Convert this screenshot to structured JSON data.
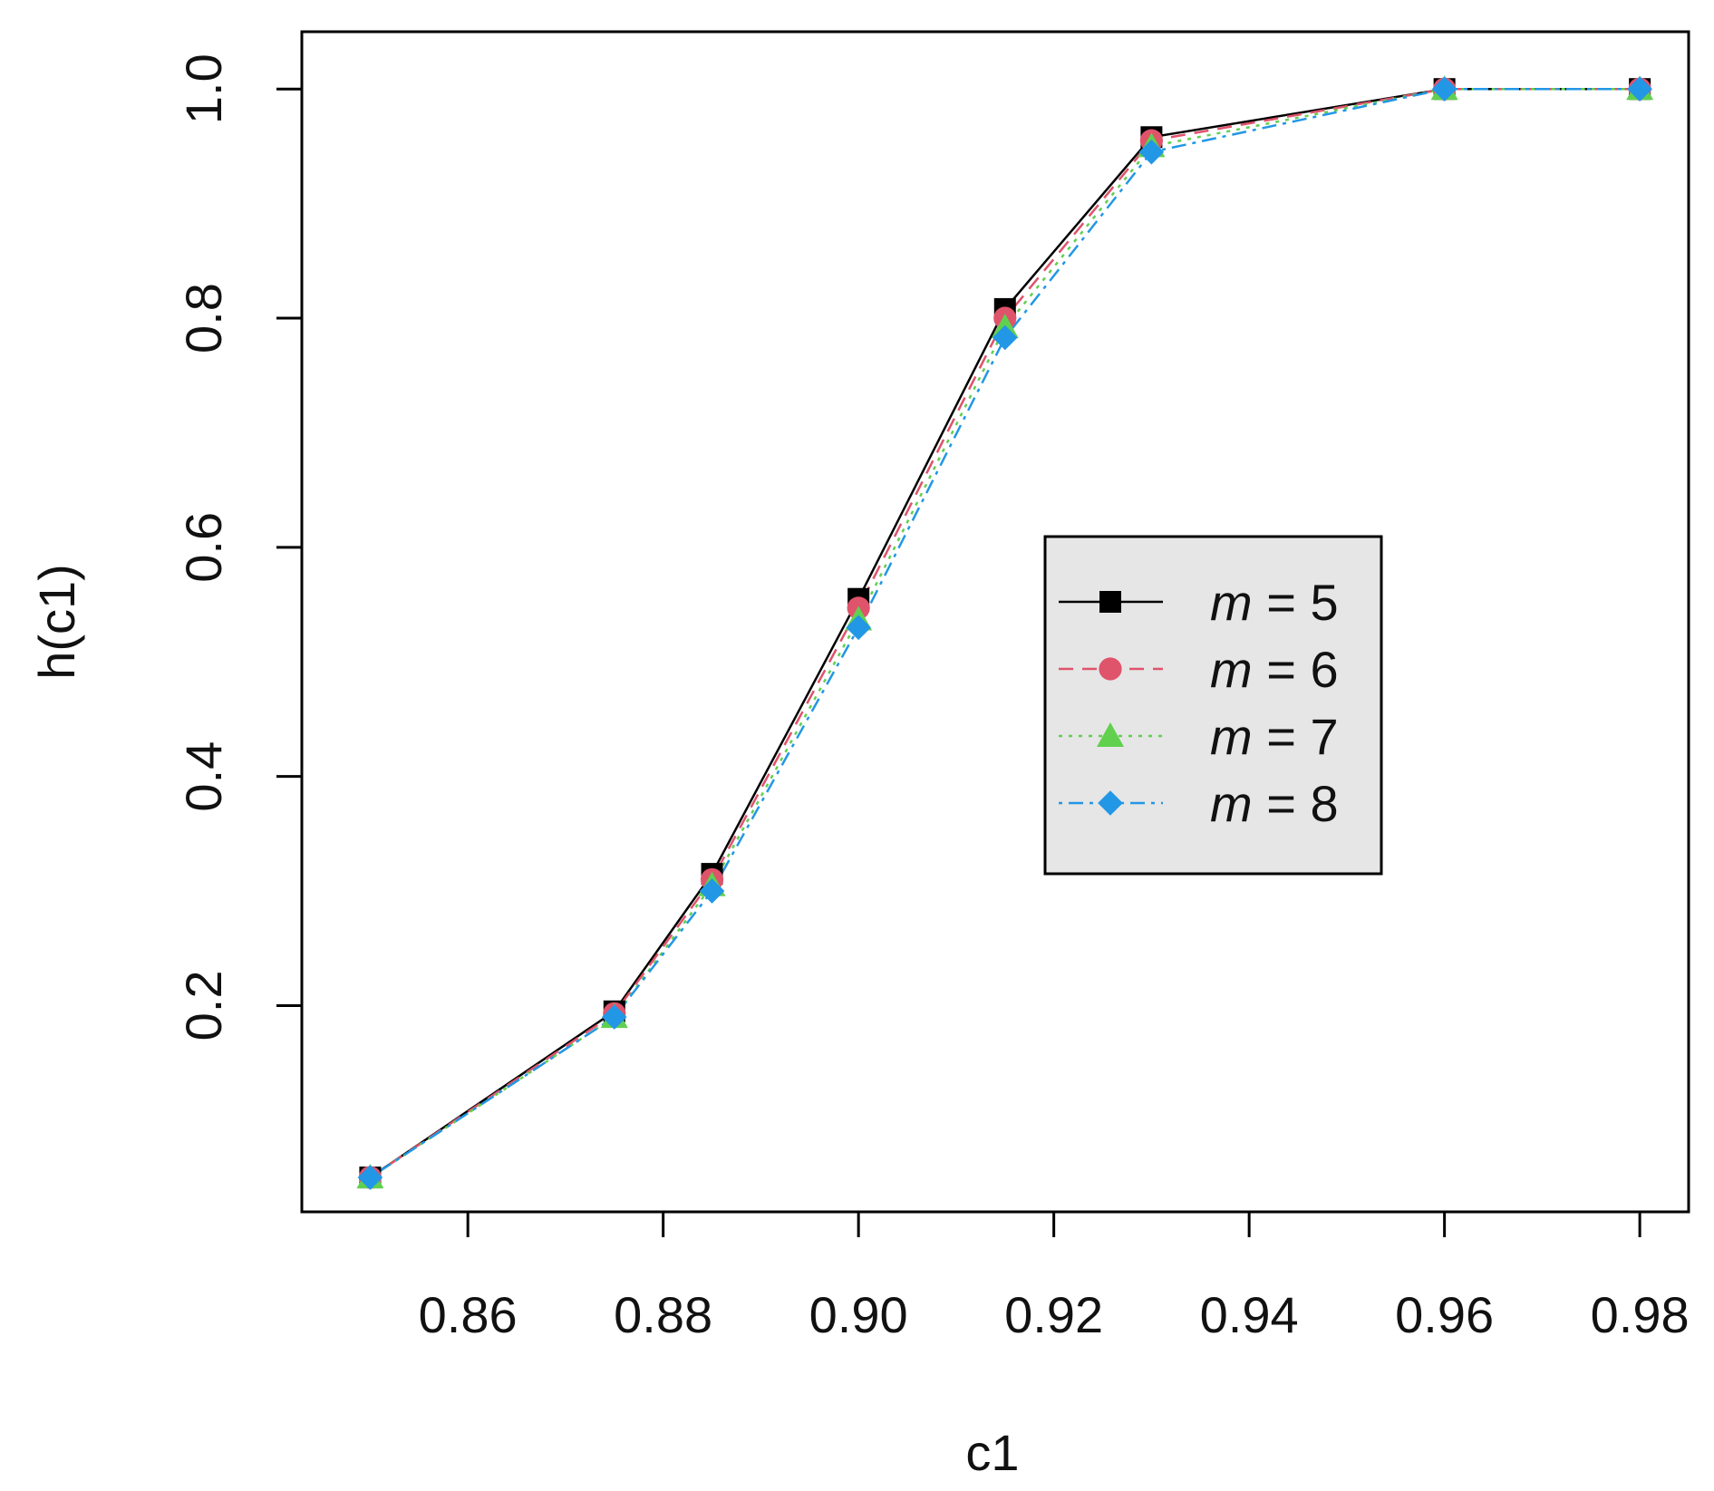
{
  "chart_data": {
    "type": "line",
    "xlabel": "c1",
    "ylabel": "h(c1)",
    "x": [
      0.85,
      0.875,
      0.885,
      0.9,
      0.915,
      0.93,
      0.96,
      0.98
    ],
    "xlim": [
      0.843,
      0.985
    ],
    "ylim": [
      0.02,
      1.05
    ],
    "x_ticks": [
      0.86,
      0.88,
      0.9,
      0.92,
      0.94,
      0.96,
      0.98
    ],
    "x_tick_labels": [
      "0.86",
      "0.88",
      "0.90",
      "0.92",
      "0.94",
      "0.96",
      "0.98"
    ],
    "y_ticks": [
      0.2,
      0.4,
      0.6,
      0.8,
      1.0
    ],
    "y_tick_labels": [
      "0.2",
      "0.4",
      "0.6",
      "0.8",
      "1.0"
    ],
    "grid": false,
    "legend_position": "center-right",
    "legend": {
      "entries": [
        {
          "var": "m",
          "eq": " = 5"
        },
        {
          "var": "m",
          "eq": " = 6"
        },
        {
          "var": "m",
          "eq": " = 7"
        },
        {
          "var": "m",
          "eq": " = 8"
        }
      ],
      "background": "#e6e6e6"
    },
    "series": [
      {
        "color": "#000000",
        "marker": "square",
        "dash": "solid",
        "values": [
          0.05,
          0.195,
          0.315,
          0.555,
          0.808,
          0.958,
          1.0,
          1.0
        ]
      },
      {
        "color": "#df536b",
        "marker": "circle",
        "dash": "dashed",
        "values": [
          0.05,
          0.193,
          0.31,
          0.547,
          0.8,
          0.955,
          1.0,
          1.0
        ]
      },
      {
        "color": "#61d04f",
        "marker": "triangle",
        "dash": "dotted",
        "values": [
          0.05,
          0.19,
          0.305,
          0.537,
          0.792,
          0.95,
          1.0,
          1.0
        ]
      },
      {
        "color": "#2297e6",
        "marker": "diamond",
        "dash": "dotdash",
        "values": [
          0.05,
          0.19,
          0.3,
          0.53,
          0.783,
          0.945,
          1.0,
          1.0
        ]
      }
    ]
  }
}
